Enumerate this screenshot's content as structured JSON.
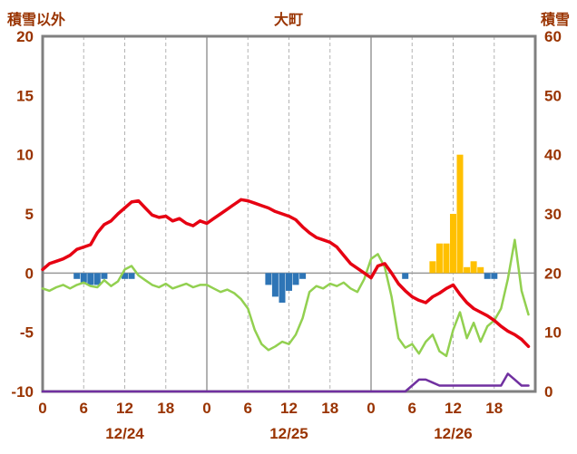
{
  "header": {
    "left_axis_label": "積雪以外",
    "title": "大町",
    "right_axis_label": "積雪"
  },
  "chart_data": {
    "type": "composite",
    "title": "大町",
    "style": {
      "text_color": "#993300",
      "grid_color": "#b3b3b3",
      "axis_line_color": "#999999",
      "border_color": "#808080",
      "background": "#ffffff"
    },
    "left_axis": {
      "label": "積雪以外",
      "min": -10,
      "max": 20,
      "ticks": [
        20,
        15,
        10,
        5,
        0,
        -5,
        -10
      ]
    },
    "right_axis": {
      "label": "積雪",
      "min": 0,
      "max": 60,
      "ticks": [
        60,
        50,
        40,
        30,
        20,
        10,
        0
      ]
    },
    "x_axis": {
      "hours_total": 72,
      "tick_interval": 6,
      "tick_labels": [
        "0",
        "6",
        "12",
        "18",
        "0",
        "6",
        "12",
        "18",
        "0",
        "6",
        "12",
        "18"
      ],
      "day_labels": [
        "12/24",
        "12/25",
        "12/26"
      ]
    },
    "series": [
      {
        "name": "blue-bars",
        "type": "bar",
        "axis": "left",
        "color": "#2e75b6",
        "points": [
          [
            5,
            -0.5
          ],
          [
            6,
            -0.8
          ],
          [
            7,
            -1.0
          ],
          [
            8,
            -1.0
          ],
          [
            9,
            -0.5
          ],
          [
            12,
            -0.5
          ],
          [
            13,
            -0.5
          ],
          [
            33,
            -1.0
          ],
          [
            34,
            -2.0
          ],
          [
            35,
            -2.5
          ],
          [
            36,
            -1.5
          ],
          [
            37,
            -1.0
          ],
          [
            38,
            -0.5
          ],
          [
            53,
            -0.5
          ],
          [
            65,
            -0.5
          ],
          [
            66,
            -0.5
          ]
        ]
      },
      {
        "name": "yellow-bars",
        "type": "bar",
        "axis": "left",
        "color": "#ffc000",
        "points": [
          [
            57,
            1.0
          ],
          [
            58,
            2.5
          ],
          [
            59,
            2.5
          ],
          [
            60,
            5.0
          ],
          [
            61,
            10.0
          ],
          [
            62,
            0.5
          ],
          [
            63,
            1.0
          ],
          [
            64,
            0.5
          ]
        ]
      },
      {
        "name": "green-line",
        "type": "line",
        "axis": "left",
        "color": "#92d050",
        "width": 2.5,
        "values": [
          -1.3,
          -1.5,
          -1.2,
          -1.0,
          -1.3,
          -1.0,
          -0.8,
          -1.1,
          -1.2,
          -0.6,
          -1.1,
          -0.7,
          0.3,
          0.6,
          -0.2,
          -0.6,
          -1.0,
          -1.2,
          -0.9,
          -1.3,
          -1.1,
          -0.9,
          -1.2,
          -1.0,
          -1.0,
          -1.3,
          -1.6,
          -1.4,
          -1.7,
          -2.2,
          -3.0,
          -4.8,
          -6.0,
          -6.5,
          -6.2,
          -5.8,
          -6.0,
          -5.2,
          -3.8,
          -1.6,
          -1.1,
          -1.3,
          -0.9,
          -1.1,
          -0.8,
          -1.3,
          -1.6,
          -0.5,
          1.2,
          1.6,
          0.5,
          -2.0,
          -5.5,
          -6.3,
          -6.0,
          -6.8,
          -5.8,
          -5.2,
          -6.6,
          -7.0,
          -4.8,
          -3.3,
          -5.5,
          -4.2,
          -5.8,
          -4.5,
          -4.0,
          -3.0,
          -0.5,
          2.8,
          -1.5,
          -3.5
        ]
      },
      {
        "name": "red-line",
        "type": "line",
        "axis": "left",
        "color": "#e60012",
        "width": 3.5,
        "values": [
          0.3,
          0.8,
          1.0,
          1.2,
          1.5,
          2.0,
          2.2,
          2.4,
          3.4,
          4.1,
          4.4,
          5.0,
          5.5,
          6.0,
          6.1,
          5.5,
          4.9,
          4.7,
          4.8,
          4.4,
          4.6,
          4.2,
          4.0,
          4.4,
          4.2,
          4.6,
          5.0,
          5.4,
          5.8,
          6.2,
          6.1,
          5.9,
          5.7,
          5.5,
          5.2,
          5.0,
          4.8,
          4.5,
          3.9,
          3.4,
          3.0,
          2.8,
          2.6,
          2.2,
          1.5,
          0.8,
          0.4,
          0.0,
          -0.4,
          0.6,
          0.8,
          0.0,
          -0.9,
          -1.5,
          -2.0,
          -2.3,
          -2.5,
          -2.0,
          -1.7,
          -1.3,
          -1.0,
          -1.8,
          -2.5,
          -3.0,
          -3.3,
          -3.6,
          -4.0,
          -4.5,
          -4.9,
          -5.2,
          -5.6,
          -6.2
        ]
      },
      {
        "name": "purple-line",
        "type": "line",
        "axis": "right",
        "color": "#7030a0",
        "width": 2.5,
        "values": [
          0,
          0,
          0,
          0,
          0,
          0,
          0,
          0,
          0,
          0,
          0,
          0,
          0,
          0,
          0,
          0,
          0,
          0,
          0,
          0,
          0,
          0,
          0,
          0,
          0,
          0,
          0,
          0,
          0,
          0,
          0,
          0,
          0,
          0,
          0,
          0,
          0,
          0,
          0,
          0,
          0,
          0,
          0,
          0,
          0,
          0,
          0,
          0,
          0,
          0,
          0,
          0,
          0,
          0,
          1,
          2,
          2,
          1.5,
          1,
          1,
          1,
          1,
          1,
          1,
          1,
          1,
          1,
          1,
          3,
          2,
          1,
          1
        ]
      }
    ]
  }
}
